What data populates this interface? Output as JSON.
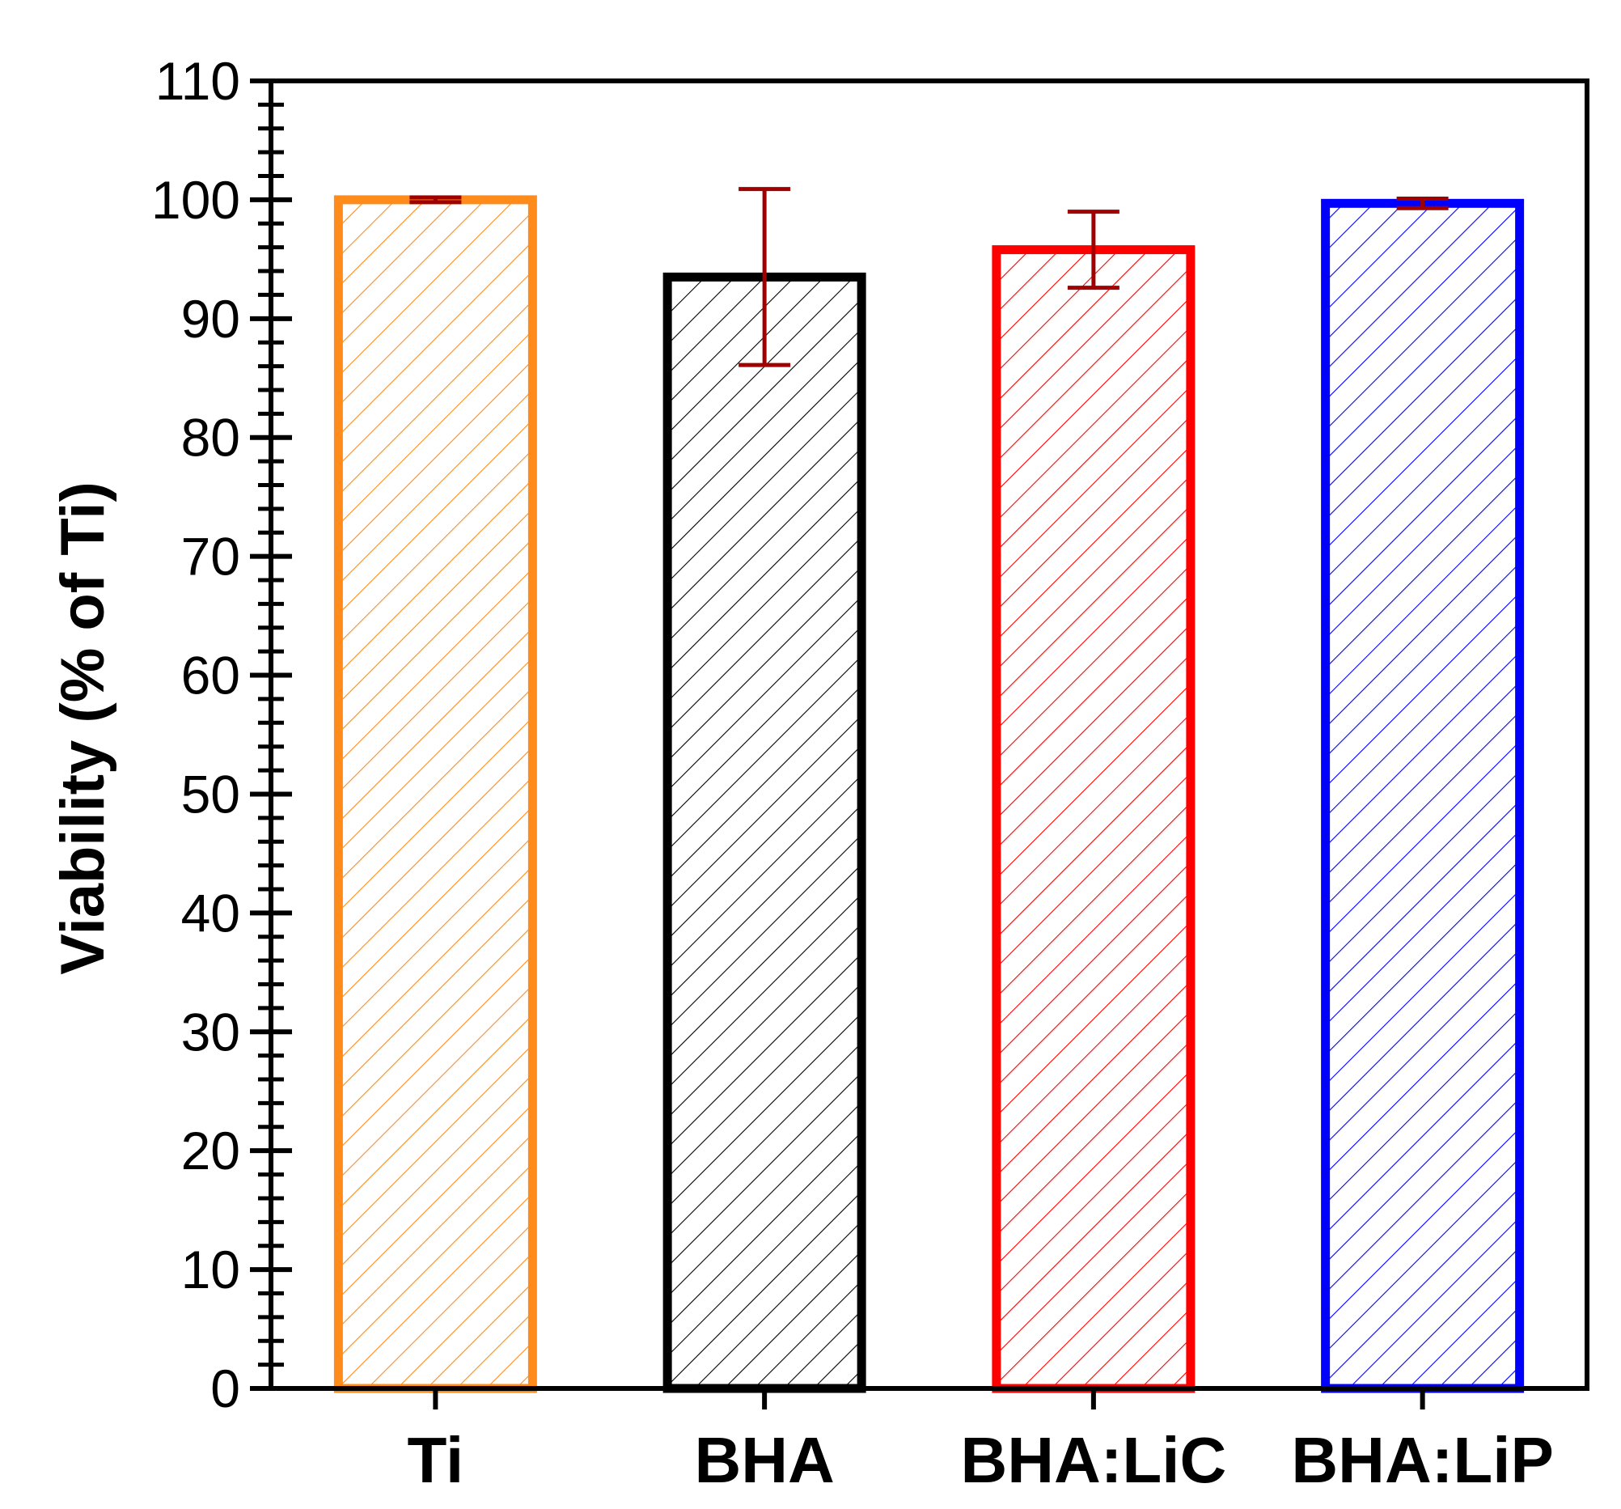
{
  "chart_data": {
    "type": "bar",
    "title": "",
    "xlabel": "",
    "ylabel": "Viability (% of Ti)",
    "ylim": [
      0,
      110
    ],
    "yticks": [
      "0",
      "10",
      "20",
      "30",
      "40",
      "50",
      "60",
      "70",
      "80",
      "90",
      "100",
      "110"
    ],
    "categories": [
      "Ti",
      "BHA",
      "BHA:LiC",
      "BHA:LiP"
    ],
    "values": [
      100,
      93.5,
      95.8,
      99.7
    ],
    "errors": [
      0.2,
      7.4,
      3.2,
      0.4
    ],
    "colors": [
      "#ff8c1a",
      "#000000",
      "#ff0000",
      "#0000ff"
    ],
    "error_color": "#a00000",
    "fill": "hatched",
    "grid": false,
    "legend": "none"
  }
}
